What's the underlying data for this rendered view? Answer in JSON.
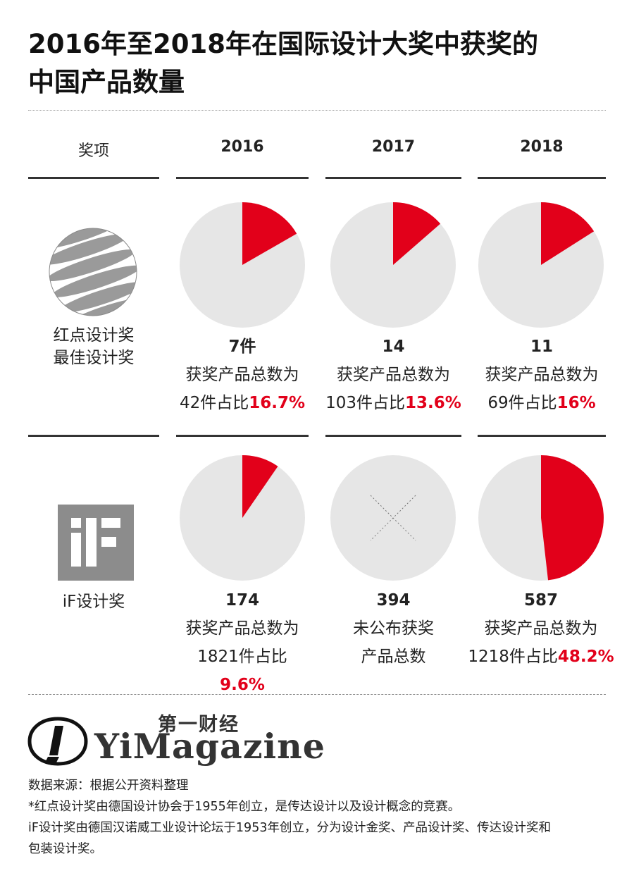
{
  "title": {
    "line1": "2016年至2018年在国际设计大奖中获奖的",
    "line2": "中国产品数量"
  },
  "header": {
    "award_label": "奖项",
    "years": [
      "2016",
      "2017",
      "2018"
    ]
  },
  "awards": [
    {
      "name_line1": "红点设计奖",
      "name_line2": "最佳设计奖",
      "logo_icon": "red-dot-sphere-icon",
      "cells": [
        {
          "count": "7件",
          "total_line": "获奖产品总数为",
          "total_prefix": "42件占比",
          "pct": "16.7%"
        },
        {
          "count": "14",
          "total_line": "获奖产品总数为",
          "total_prefix": "103件占比",
          "pct": "13.6%"
        },
        {
          "count": "11",
          "total_line": "获奖产品总数为",
          "total_prefix": "69件占比",
          "pct": "16%"
        }
      ]
    },
    {
      "name_line1": "iF设计奖",
      "logo_icon": "if-logo-icon",
      "cells": [
        {
          "count": "174",
          "total_line": "获奖产品总数为",
          "total_prefix": "1821件占比",
          "pct": "9.6%"
        },
        {
          "count": "394",
          "total_line": "未公布获奖",
          "total_prefix": "产品总数",
          "pct": ""
        },
        {
          "count": "587",
          "total_line": "获奖产品总数为",
          "total_prefix": "1218件占比",
          "pct": "48.2%"
        }
      ]
    }
  ],
  "chart_data": {
    "type": "pie",
    "categories": [
      "2016",
      "2017",
      "2018"
    ],
    "series": [
      {
        "name": "红点设计奖 最佳设计奖",
        "winners": [
          7,
          14,
          11
        ],
        "totals": [
          42,
          103,
          69
        ],
        "percent": [
          16.7,
          13.6,
          16
        ]
      },
      {
        "name": "iF设计奖",
        "winners": [
          174,
          394,
          587
        ],
        "totals": [
          1821,
          null,
          1218
        ],
        "percent": [
          9.6,
          null,
          48.2
        ]
      }
    ],
    "colors": {
      "share": "#e2001a",
      "rest": "#e6e6e6"
    }
  },
  "brand": {
    "cn": "第一财经",
    "en": "YiMagazine"
  },
  "notes": [
    "数据来源：根据公开资料整理",
    "*红点设计奖由德国设计协会于1955年创立，是传达设计以及设计概念的竞赛。",
    "iF设计奖由德国汉诺威工业设计论坛于1953年创立，分为设计金奖、产品设计奖、传达设计奖和",
    "包装设计奖。"
  ]
}
